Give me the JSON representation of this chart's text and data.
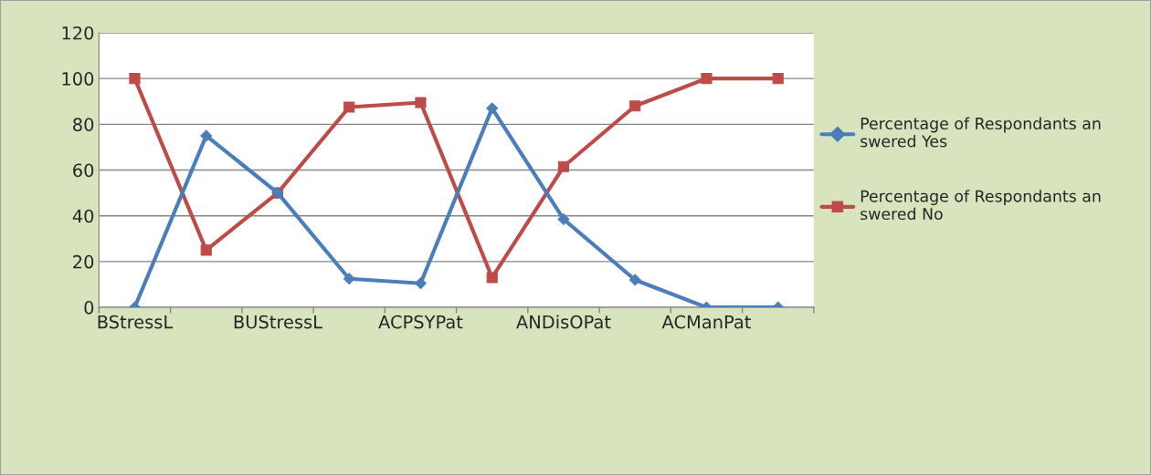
{
  "chart_data": {
    "type": "line",
    "categories": [
      "BStressL",
      null,
      "BUStressL",
      null,
      "ACPSYPat",
      null,
      "ANDisOPat",
      null,
      "ACManPat",
      null
    ],
    "series": [
      {
        "name": "Percentage of Respondants answered Yes",
        "color": "#4a7ebb",
        "marker": "diamond",
        "values": [
          0,
          75,
          50,
          12.5,
          10.5,
          87,
          38.5,
          12,
          0,
          0
        ]
      },
      {
        "name": "Percentage of Respondants answered No",
        "color": "#be4b48",
        "marker": "square",
        "values": [
          100,
          25,
          50,
          87.5,
          89.5,
          13,
          61.5,
          88,
          100,
          100
        ]
      }
    ],
    "ylim": [
      0,
      120
    ],
    "yticks": [
      0,
      20,
      40,
      60,
      80,
      100,
      120
    ],
    "grid": "y",
    "legend": "right",
    "line_style": "solid"
  }
}
